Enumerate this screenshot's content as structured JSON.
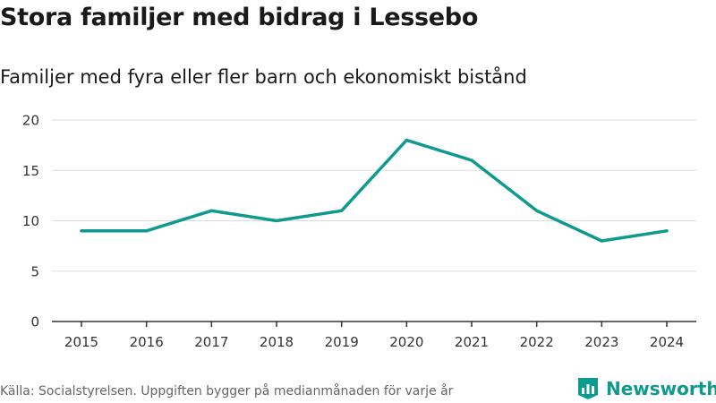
{
  "header": {
    "title": "Stora familjer med bidrag i Lessebo",
    "subtitle": "Familjer med fyra eller fler barn och ekonomiskt bistånd"
  },
  "footer": {
    "source": "Källa: Socialstyrelsen. Uppgiften bygger på medianmånaden för varje år",
    "brand": "Newsworthy"
  },
  "colors": {
    "line": "#0f9a8f",
    "grid": "#dddddd",
    "axis": "#333333"
  },
  "chart_data": {
    "type": "line",
    "title": "Stora familjer med bidrag i Lessebo",
    "subtitle": "Familjer med fyra eller fler barn och ekonomiskt bistånd",
    "xlabel": "",
    "ylabel": "",
    "ylim": [
      0,
      20
    ],
    "yticks": [
      0,
      5,
      10,
      15,
      20
    ],
    "grid": true,
    "categories": [
      "2015",
      "2016",
      "2017",
      "2018",
      "2019",
      "2020",
      "2021",
      "2022",
      "2023",
      "2024"
    ],
    "series": [
      {
        "name": "Familjer med fyra eller fler barn och ekonomiskt bistånd",
        "values": [
          9,
          9,
          11,
          10,
          11,
          18,
          16,
          11,
          8,
          9
        ]
      }
    ]
  }
}
